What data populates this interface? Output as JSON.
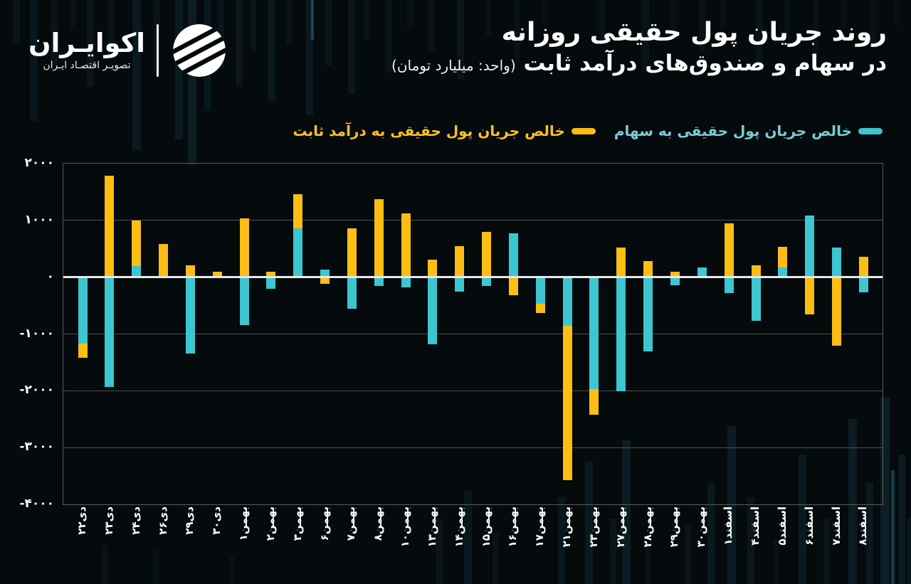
{
  "logo": {
    "name": "اکوایـران",
    "tagline": "تصویـر اقتصـاد ایـران"
  },
  "title": {
    "line1": "روند جریان پول حقیقی روزانه",
    "line2": "در سهام و صندوق‌های درآمد ثابت",
    "unit": "(واحد: میلیارد تومان)"
  },
  "legend": [
    {
      "label": "خالص جریان پول حقیقی به سهام",
      "color": "#3CC6D0",
      "text_color": "#7accd4"
    },
    {
      "label": "خالص جریان پول حقیقی به درآمد ثابت",
      "color": "#FCBE13",
      "text_color": "#ffc21e"
    }
  ],
  "chart_data": {
    "type": "bar",
    "stacked": true,
    "title": "روند جریان پول حقیقی روزانه در سهام و صندوق‌های درآمد ثابت",
    "unit": "میلیارد تومان",
    "grid": "horizontal",
    "legend_position": "top",
    "ylim": [
      -4000,
      2000
    ],
    "yticks": {
      "values": [
        2000,
        1000,
        0,
        -1000,
        -2000,
        -3000,
        -4000
      ],
      "labels": [
        "۲۰۰۰",
        "۱۰۰۰",
        "۰",
        "-۱۰۰۰",
        "-۲۰۰۰",
        "-۳۰۰۰",
        "-۴۰۰۰"
      ]
    },
    "categories": [
      "دی۲۲",
      "دی۲۳",
      "دی۲۴",
      "دی۲۶",
      "دی۲۹",
      "دی۳۰",
      "بهمن۱",
      "بهمن۲",
      "بهمن۳",
      "بهمن۶",
      "بهمن۷",
      "بهمن۸",
      "بهمن۱۰",
      "بهمن۱۳",
      "بهمن۱۴",
      "بهمن۱۵",
      "بهمن۱۶",
      "بهمن۱۷",
      "بهمن۲۱",
      "بهمن۲۳",
      "بهمن۲۷",
      "بهمن۲۸",
      "بهمن۲۹",
      "بهمن۳۰",
      "اسفند۱",
      "اسفند۴",
      "اسفند۵",
      "اسفند۶",
      "اسفند۷",
      "اسفند۸"
    ],
    "series": [
      {
        "name": "خالص جریان پول حقیقی به سهام",
        "color": "#3CC6D0",
        "values": [
          -1175,
          -1930,
          200,
          0,
          -1350,
          0,
          -840,
          -200,
          860,
          135,
          -555,
          -160,
          -180,
          -1180,
          -250,
          -160,
          770,
          -470,
          -860,
          -1975,
          -2005,
          -1310,
          -145,
          165,
          -285,
          -765,
          175,
          1080,
          520,
          -265
        ]
      },
      {
        "name": "خالص جریان پول حقیقی به درآمد ثابت",
        "color": "#FCBE13",
        "values": [
          -250,
          1790,
          800,
          580,
          205,
          90,
          1040,
          90,
          600,
          -115,
          860,
          1370,
          1120,
          310,
          545,
          795,
          -315,
          -160,
          -2715,
          -445,
          520,
          290,
          100,
          0,
          950,
          205,
          355,
          -650,
          -1210,
          355
        ]
      }
    ]
  }
}
